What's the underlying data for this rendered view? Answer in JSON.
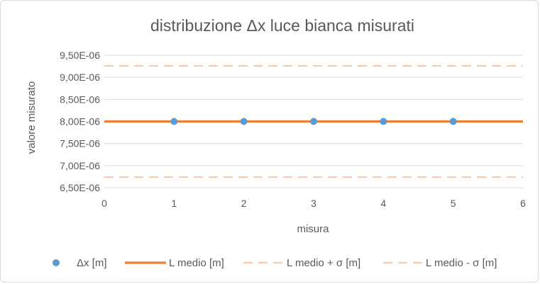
{
  "chart_data": {
    "type": "scatter",
    "title": "distribuzione Δx luce bianca misurati",
    "xlabel": "misura",
    "ylabel": "valore misurato",
    "xlim": [
      0,
      6
    ],
    "ylim": [
      6.5e-06,
      9.5e-06
    ],
    "x_ticks": [
      "0",
      "1",
      "2",
      "3",
      "4",
      "5",
      "6"
    ],
    "y_ticks": [
      "6,50E-06",
      "7,00E-06",
      "7,50E-06",
      "8,00E-06",
      "8,50E-06",
      "9,00E-06",
      "9,50E-06"
    ],
    "grid": "horizontal",
    "legend_position": "bottom",
    "series": [
      {
        "name": "Δx [m]",
        "kind": "markers",
        "color": "#5b9bd5",
        "x": [
          1,
          2,
          3,
          4,
          5
        ],
        "y": [
          8e-06,
          8e-06,
          8e-06,
          8e-06,
          8e-06
        ]
      },
      {
        "name": "L medio [m]",
        "kind": "line",
        "style": "solid",
        "color": "#ed7d31",
        "x": [
          0,
          6
        ],
        "y": [
          8e-06,
          8e-06
        ]
      },
      {
        "name": "L medio + σ [m]",
        "kind": "line",
        "style": "dashed",
        "color": "#f8cbad",
        "x": [
          0,
          6
        ],
        "y": [
          9.26e-06,
          9.26e-06
        ]
      },
      {
        "name": "L medio - σ [m]",
        "kind": "line",
        "style": "dashed",
        "color": "#f8cbad",
        "x": [
          0,
          6
        ],
        "y": [
          6.74e-06,
          6.74e-06
        ]
      }
    ]
  }
}
